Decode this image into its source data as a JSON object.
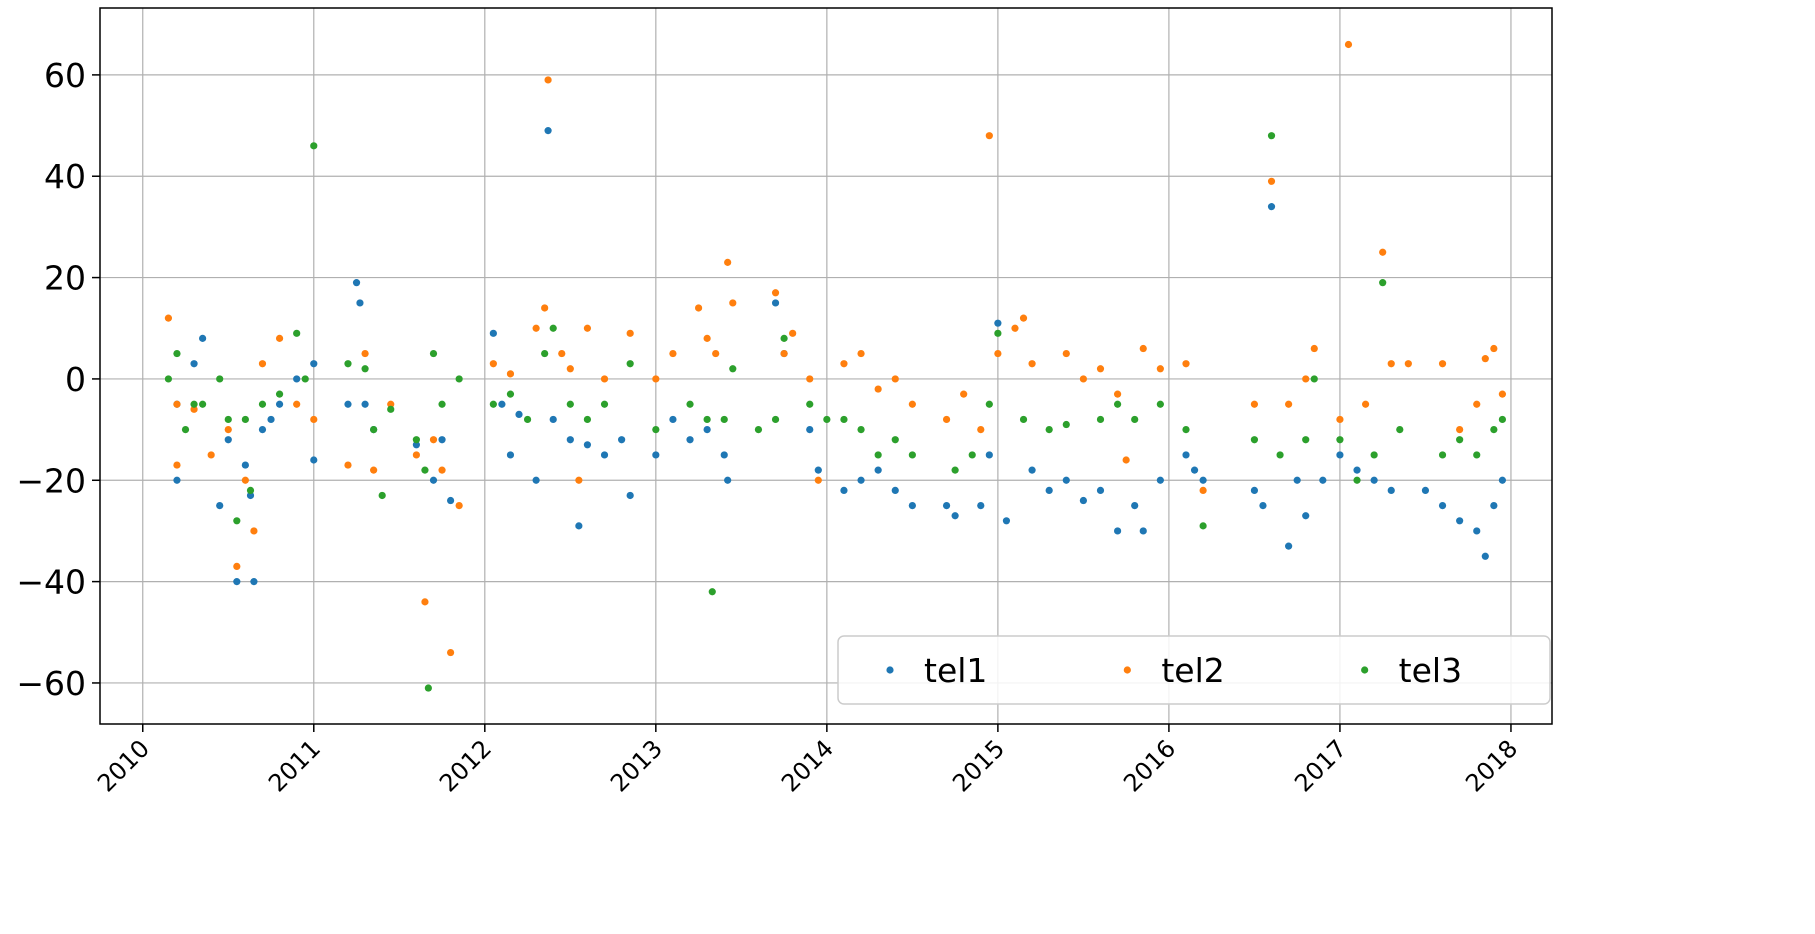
{
  "chart_data": {
    "type": "scatter",
    "xlim": [
      2009.75,
      2018.24
    ],
    "xticks": [
      2010,
      2011,
      2012,
      2013,
      2014,
      2015,
      2016,
      2017,
      2018
    ],
    "ylim": [
      -68.1,
      73.2
    ],
    "yticks": [
      {
        "value": -60,
        "label": "−60"
      },
      {
        "value": -40,
        "label": "−40"
      },
      {
        "value": -20,
        "label": "−20"
      },
      0,
      20,
      40,
      60
    ],
    "grid": true,
    "legend": "lower right",
    "series": [
      {
        "name": "tel1",
        "color": "#1f77b4",
        "x": [
          2010.2,
          2010.2,
          2010.3,
          2010.35,
          2010.45,
          2010.5,
          2010.55,
          2010.6,
          2010.63,
          2010.65,
          2010.7,
          2010.75,
          2010.8,
          2010.9,
          2011.0,
          2011.0,
          2011.2,
          2011.25,
          2011.27,
          2011.3,
          2011.35,
          2011.6,
          2011.7,
          2011.75,
          2011.8,
          2012.05,
          2012.1,
          2012.15,
          2012.2,
          2012.3,
          2012.37,
          2012.4,
          2012.5,
          2012.55,
          2012.6,
          2012.7,
          2012.8,
          2012.85,
          2013.0,
          2013.1,
          2013.2,
          2013.3,
          2013.4,
          2013.42,
          2013.7,
          2013.75,
          2013.9,
          2013.95,
          2014.1,
          2014.2,
          2014.3,
          2014.4,
          2014.5,
          2014.7,
          2014.75,
          2014.9,
          2014.95,
          2015.0,
          2015.05,
          2015.2,
          2015.3,
          2015.4,
          2015.5,
          2015.6,
          2015.7,
          2015.8,
          2015.85,
          2015.95,
          2016.1,
          2016.15,
          2016.2,
          2016.5,
          2016.55,
          2016.6,
          2016.7,
          2016.75,
          2016.8,
          2016.9,
          2017.0,
          2017.1,
          2017.2,
          2017.3,
          2017.5,
          2017.6,
          2017.7,
          2017.8,
          2017.85,
          2017.9,
          2017.95
        ],
        "values": [
          -20,
          -5,
          3,
          8,
          -25,
          -12,
          -40,
          -17,
          -23,
          -40,
          -10,
          -8,
          -5,
          0,
          -16,
          3,
          -5,
          19,
          15,
          -5,
          -10,
          -13,
          -20,
          -12,
          -24,
          9,
          -5,
          -15,
          -7,
          -20,
          49,
          -8,
          -12,
          -29,
          -13,
          -15,
          -12,
          -23,
          -15,
          -8,
          -12,
          -10,
          -15,
          -20,
          15,
          5,
          -10,
          -18,
          -22,
          -20,
          -18,
          -22,
          -25,
          -25,
          -27,
          -25,
          -15,
          11,
          -28,
          -18,
          -22,
          -20,
          -24,
          -22,
          -30,
          -25,
          -30,
          -20,
          -15,
          -18,
          -20,
          -22,
          -25,
          34,
          -33,
          -20,
          -27,
          -20,
          -15,
          -18,
          -20,
          -22,
          -22,
          -25,
          -28,
          -30,
          -35,
          -25,
          -20
        ]
      },
      {
        "name": "tel2",
        "color": "#ff7f0e",
        "x": [
          2010.15,
          2010.2,
          2010.2,
          2010.3,
          2010.4,
          2010.5,
          2010.55,
          2010.6,
          2010.65,
          2010.7,
          2010.8,
          2010.9,
          2011.0,
          2011.2,
          2011.3,
          2011.35,
          2011.45,
          2011.6,
          2011.65,
          2011.7,
          2011.75,
          2011.8,
          2011.85,
          2012.05,
          2012.15,
          2012.3,
          2012.35,
          2012.37,
          2012.45,
          2012.5,
          2012.55,
          2012.6,
          2012.7,
          2012.85,
          2013.0,
          2013.1,
          2013.25,
          2013.3,
          2013.35,
          2013.42,
          2013.45,
          2013.7,
          2013.75,
          2013.8,
          2013.9,
          2013.95,
          2014.1,
          2014.2,
          2014.3,
          2014.4,
          2014.5,
          2014.7,
          2014.8,
          2014.9,
          2014.95,
          2015.0,
          2015.1,
          2015.15,
          2015.2,
          2015.4,
          2015.5,
          2015.6,
          2015.7,
          2015.75,
          2015.85,
          2015.95,
          2016.1,
          2016.2,
          2016.5,
          2016.6,
          2016.7,
          2016.8,
          2016.85,
          2017.0,
          2017.05,
          2017.15,
          2017.25,
          2017.3,
          2017.4,
          2017.6,
          2017.7,
          2017.8,
          2017.85,
          2017.9,
          2017.95
        ],
        "values": [
          12,
          -5,
          -17,
          -6,
          -15,
          -10,
          -37,
          -20,
          -30,
          3,
          8,
          -5,
          -8,
          -17,
          5,
          -18,
          -5,
          -15,
          -44,
          -12,
          -18,
          -54,
          -25,
          3,
          1,
          10,
          14,
          59,
          5,
          2,
          -20,
          10,
          0,
          9,
          0,
          5,
          14,
          8,
          5,
          23,
          15,
          17,
          5,
          9,
          0,
          -20,
          3,
          5,
          -2,
          0,
          -5,
          -8,
          -3,
          -10,
          48,
          5,
          10,
          12,
          3,
          5,
          0,
          2,
          -3,
          -16,
          6,
          2,
          3,
          -22,
          -5,
          39,
          -5,
          0,
          6,
          -8,
          66,
          -5,
          25,
          3,
          3,
          3,
          -10,
          -5,
          4,
          6,
          -3
        ]
      },
      {
        "name": "tel3",
        "color": "#2ca02c",
        "x": [
          2010.15,
          2010.2,
          2010.25,
          2010.3,
          2010.35,
          2010.45,
          2010.5,
          2010.55,
          2010.6,
          2010.63,
          2010.7,
          2010.8,
          2010.9,
          2010.95,
          2011.0,
          2011.2,
          2011.3,
          2011.35,
          2011.4,
          2011.45,
          2011.6,
          2011.65,
          2011.67,
          2011.7,
          2011.75,
          2011.85,
          2012.05,
          2012.15,
          2012.25,
          2012.35,
          2012.4,
          2012.5,
          2012.6,
          2012.7,
          2012.85,
          2013.0,
          2013.2,
          2013.3,
          2013.33,
          2013.4,
          2013.45,
          2013.6,
          2013.7,
          2013.75,
          2013.9,
          2014.0,
          2014.1,
          2014.2,
          2014.3,
          2014.4,
          2014.5,
          2014.75,
          2014.85,
          2014.95,
          2015.0,
          2015.15,
          2015.3,
          2015.4,
          2015.6,
          2015.7,
          2015.8,
          2015.95,
          2016.1,
          2016.2,
          2016.5,
          2016.6,
          2016.65,
          2016.8,
          2016.85,
          2017.0,
          2017.1,
          2017.2,
          2017.25,
          2017.35,
          2017.6,
          2017.7,
          2017.8,
          2017.9,
          2017.95
        ],
        "values": [
          0,
          5,
          -10,
          -5,
          -5,
          0,
          -8,
          -28,
          -8,
          -22,
          -5,
          -3,
          9,
          0,
          46,
          3,
          2,
          -10,
          -23,
          -6,
          -12,
          -18,
          -61,
          5,
          -5,
          0,
          -5,
          -3,
          -8,
          5,
          10,
          -5,
          -8,
          -5,
          3,
          -10,
          -5,
          -8,
          -42,
          -8,
          2,
          -10,
          -8,
          8,
          -5,
          -8,
          -8,
          -10,
          -15,
          -12,
          -15,
          -18,
          -15,
          -5,
          9,
          -8,
          -10,
          -9,
          -8,
          -5,
          -8,
          -5,
          -10,
          -29,
          -12,
          48,
          -15,
          -12,
          0,
          -12,
          -20,
          -15,
          19,
          -10,
          -15,
          -12,
          -15,
          -10,
          -8
        ]
      }
    ]
  }
}
